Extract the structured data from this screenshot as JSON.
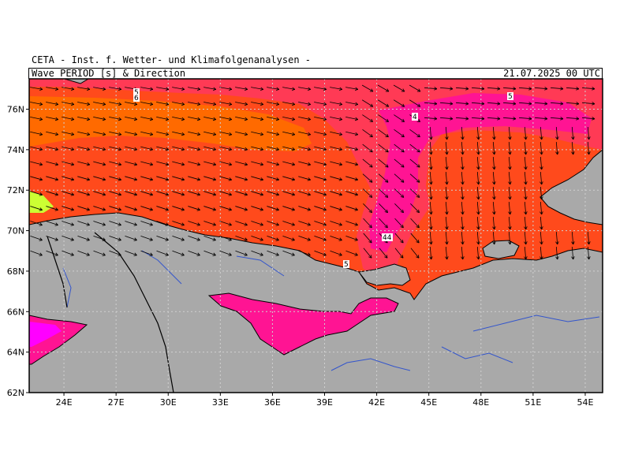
{
  "header": {
    "organization": "CETA - Inst. f. Wetter- und Klimafolgenanalysen -",
    "title": "Wave PERIOD [s] & Direction",
    "datetime": "21.07.2025 00 UTC"
  },
  "map": {
    "projection": "latitude-longitude",
    "lon_range": [
      22,
      55
    ],
    "lat_range": [
      62,
      77.5
    ],
    "lat_ticks": [
      "62N",
      "64N",
      "66N",
      "68N",
      "70N",
      "72N",
      "74N",
      "76N"
    ],
    "lon_ticks": [
      "24E",
      "27E",
      "30E",
      "33E",
      "36E",
      "39E",
      "42E",
      "45E",
      "48E",
      "51E",
      "54E"
    ],
    "contour_labels": [
      "5",
      "6",
      "4",
      "5",
      "44",
      "5"
    ],
    "colors": {
      "land": "#a9a9a9",
      "coastline": "#000000",
      "rivers": "#3355cc",
      "grid": "#c8c8c8",
      "period_3s": "#ff00ff",
      "period_4s": "#ff1493",
      "period_5s": "#ff3a55",
      "period_6s": "#ff4a1c",
      "period_7s": "#ff6a00",
      "period_low": "#ccff33"
    }
  }
}
